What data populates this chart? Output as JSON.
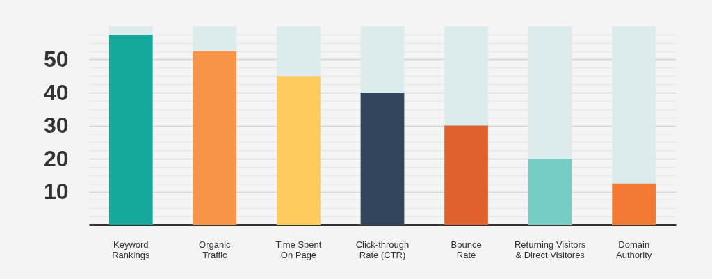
{
  "chart_data": {
    "type": "bar",
    "categories": [
      "Keyword\nRankings",
      "Organic\nTraffic",
      "Time Spent\nOn Page",
      "Click-through\nRate (CTR)",
      "Bounce\nRate",
      "Returning Visitors\n& Direct Visitores",
      "Domain\nAuthority"
    ],
    "series": [
      {
        "colors": [
          "#14a99a",
          "#f79447",
          "#fecb5f",
          "#33455d",
          "#e0602e",
          "#77ccc6",
          "#f27a35"
        ],
        "values": [
          57.5,
          52.5,
          45,
          40,
          30,
          20,
          12.5
        ]
      }
    ],
    "ylim": [
      0,
      60
    ],
    "yticks": [
      {
        "value": 2.5,
        "label": null
      },
      {
        "value": 5,
        "label": null
      },
      {
        "value": 7.5,
        "label": null
      },
      10,
      {
        "value": 12.5,
        "label": null
      },
      {
        "value": 15,
        "label": null
      },
      {
        "value": 17.5,
        "label": null
      },
      20,
      {
        "value": 22.5,
        "label": null
      },
      {
        "value": 25,
        "label": null
      },
      {
        "value": 27.5,
        "label": null
      },
      30,
      {
        "value": 32.5,
        "label": null
      },
      {
        "value": 35,
        "label": null
      },
      {
        "value": 37.5,
        "label": null
      },
      40,
      {
        "value": 42.5,
        "label": null
      },
      {
        "value": 45,
        "label": null
      },
      {
        "value": 47.5,
        "label": null
      },
      50,
      {
        "value": 52.5,
        "label": null
      },
      {
        "value": 55,
        "label": null
      },
      {
        "value": 57.5,
        "label": null
      }
    ],
    "grid": "y"
  }
}
